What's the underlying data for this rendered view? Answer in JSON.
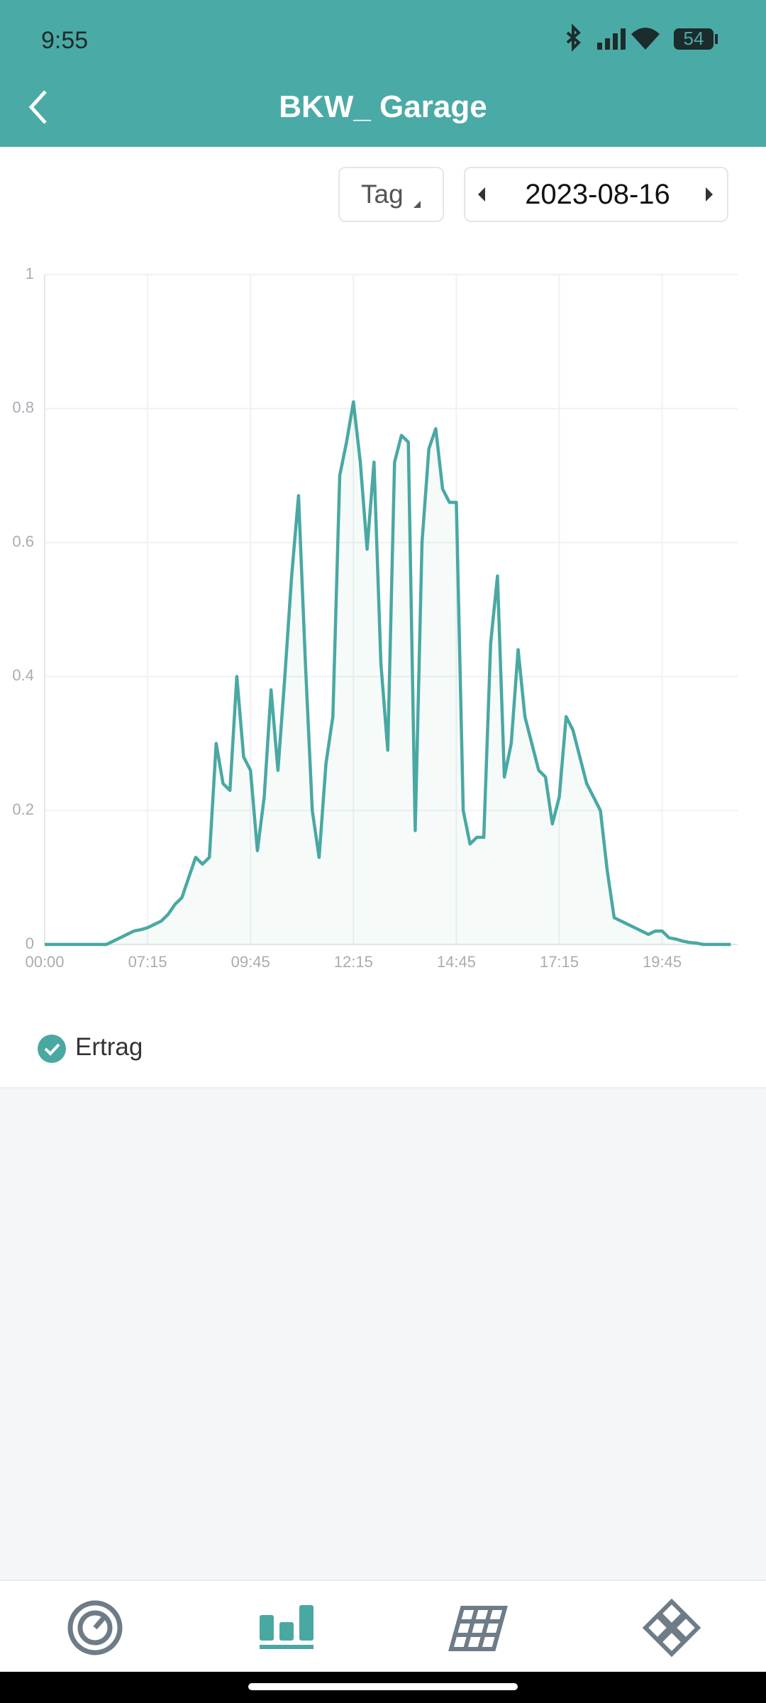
{
  "status_bar": {
    "time": "9:55",
    "battery": "54"
  },
  "header": {
    "title": "BKW_ Garage"
  },
  "controls": {
    "period": "Tag",
    "date": "2023-08-16"
  },
  "chart_data": {
    "type": "line",
    "categories": [
      "00:00",
      null,
      null,
      null,
      null,
      null,
      null,
      null,
      null,
      null,
      null,
      null,
      null,
      null,
      null,
      "07:15",
      null,
      null,
      null,
      null,
      null,
      null,
      null,
      null,
      null,
      null,
      null,
      null,
      null,
      null,
      "09:45",
      null,
      null,
      null,
      null,
      null,
      null,
      null,
      null,
      null,
      null,
      null,
      null,
      null,
      null,
      "12:15",
      null,
      null,
      null,
      null,
      null,
      null,
      null,
      null,
      null,
      null,
      null,
      null,
      null,
      null,
      "14:45",
      null,
      null,
      null,
      null,
      null,
      null,
      null,
      null,
      null,
      null,
      null,
      null,
      null,
      null,
      "17:15",
      null,
      null,
      null,
      null,
      null,
      null,
      null,
      null,
      null,
      null,
      null,
      null,
      null,
      null,
      "19:45",
      null,
      null,
      null,
      null,
      null,
      null,
      null,
      null,
      null,
      null
    ],
    "series": [
      {
        "name": "Ertrag",
        "color": "#4aa8a3",
        "values": [
          0,
          0,
          0,
          0,
          0,
          0,
          0,
          0,
          0,
          0,
          0.005,
          0.01,
          0.015,
          0.02,
          0.022,
          0.025,
          0.03,
          0.035,
          0.045,
          0.06,
          0.07,
          0.1,
          0.13,
          0.12,
          0.13,
          0.3,
          0.24,
          0.23,
          0.4,
          0.28,
          0.26,
          0.14,
          0.22,
          0.38,
          0.26,
          0.4,
          0.55,
          0.67,
          0.42,
          0.2,
          0.13,
          0.27,
          0.34,
          0.7,
          0.75,
          0.81,
          0.72,
          0.59,
          0.72,
          0.42,
          0.29,
          0.72,
          0.76,
          0.75,
          0.17,
          0.6,
          0.74,
          0.77,
          0.68,
          0.66,
          0.66,
          0.2,
          0.15,
          0.16,
          0.16,
          0.45,
          0.55,
          0.25,
          0.3,
          0.44,
          0.34,
          0.3,
          0.26,
          0.25,
          0.18,
          0.22,
          0.34,
          0.32,
          0.28,
          0.24,
          0.22,
          0.2,
          0.11,
          0.04,
          0.035,
          0.03,
          0.025,
          0.02,
          0.015,
          0.02,
          0.02,
          0.01,
          0.008,
          0.005,
          0.003,
          0.002,
          0,
          0,
          0,
          0,
          0
        ]
      }
    ],
    "ylim": [
      0,
      1
    ],
    "yticks": [
      0,
      0.2,
      0.4,
      0.6,
      0.8,
      1
    ],
    "grid": true
  }
}
